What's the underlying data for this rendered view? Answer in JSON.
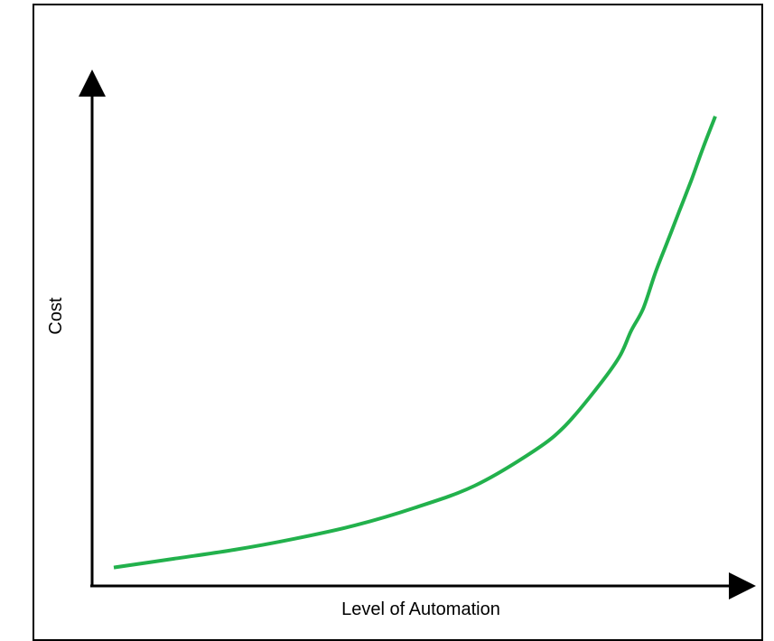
{
  "chart_data": {
    "type": "line",
    "title": "",
    "xlabel": "Level of Automation",
    "ylabel": "Cost",
    "xlim": [
      0,
      100
    ],
    "ylim": [
      0,
      100
    ],
    "grid": false,
    "legend": "none",
    "series": [
      {
        "color": "#22b14c",
        "x": [
          0,
          10,
          20,
          30,
          40,
          50,
          60,
          70,
          75,
          80,
          84,
          86,
          88,
          90,
          92,
          94,
          96,
          98,
          100
        ],
        "y": [
          1.5,
          3.5,
          5.5,
          8.0,
          11.0,
          15.0,
          20.0,
          28.0,
          33.5,
          41.5,
          49.0,
          55.0,
          60.0,
          68.0,
          75.0,
          82.0,
          89.0,
          96.5,
          103.5
        ]
      }
    ]
  }
}
